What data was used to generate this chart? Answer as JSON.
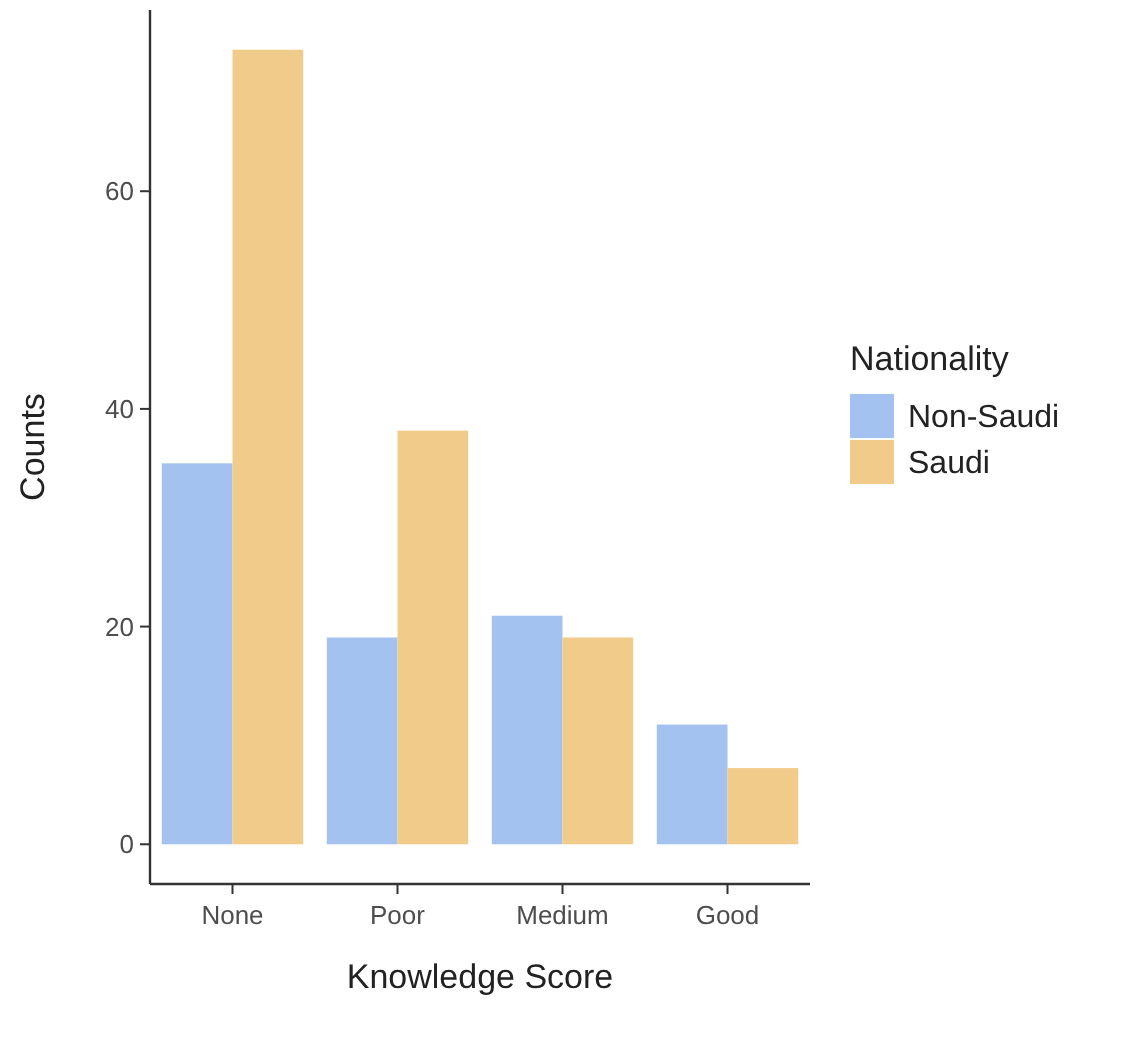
{
  "chart_data": {
    "type": "bar",
    "xlabel": "Knowledge Score",
    "ylabel": "Counts",
    "legend_title": "Nationality",
    "categories": [
      "None",
      "Poor",
      "Medium",
      "Good"
    ],
    "series": [
      {
        "name": "Non-Saudi",
        "color": "#a4c2f0",
        "values": [
          35,
          19,
          21,
          11
        ]
      },
      {
        "name": "Saudi",
        "color": "#f0cb8a",
        "values": [
          73,
          38,
          19,
          7
        ]
      }
    ],
    "ylim": [
      -3.65,
      76.65
    ],
    "yticks": [
      0,
      20,
      40,
      60
    ],
    "grid": false,
    "legend": "right"
  }
}
